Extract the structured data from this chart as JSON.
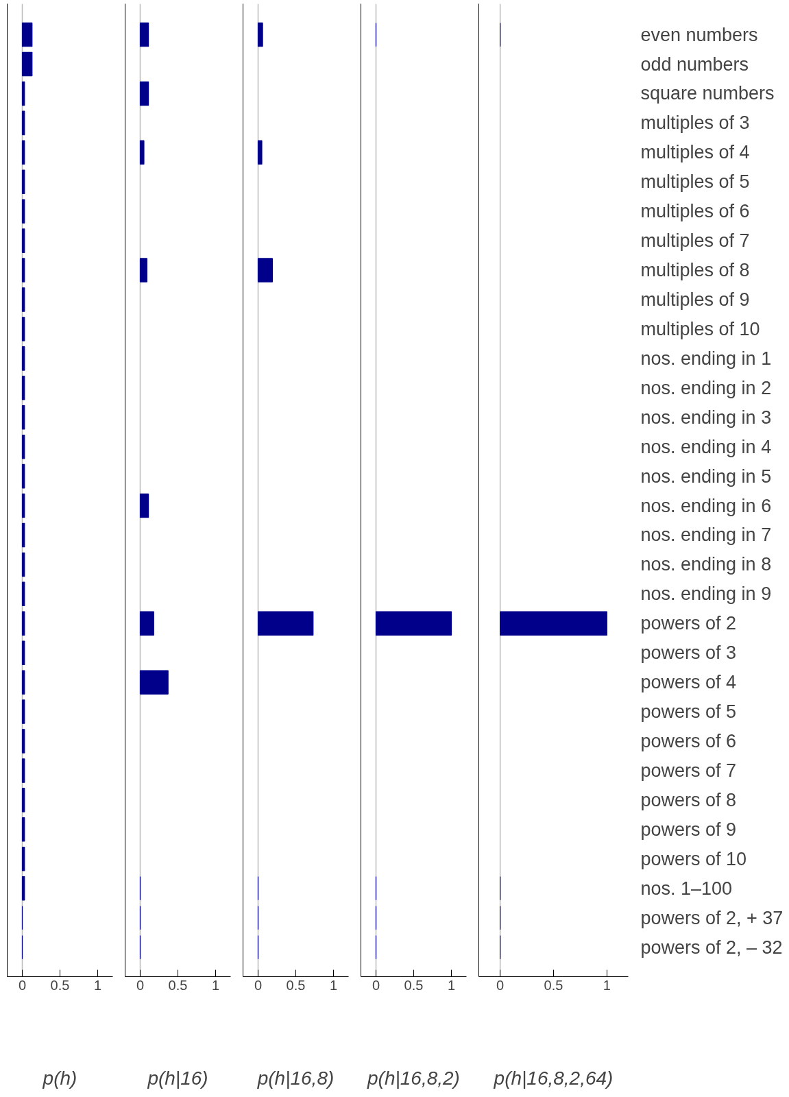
{
  "chart_data": [
    {
      "type": "bar",
      "orientation": "horizontal",
      "xlabel": "p(h)",
      "tick_labels": "x",
      "color": "#00008b",
      "xlim": [
        -0.2,
        1.2
      ],
      "xticks": [
        0,
        0.5,
        1
      ],
      "ref_lines": [
        {
          "axis": "x",
          "value": 0,
          "color": "#bbbbbb"
        }
      ],
      "values": [
        0.13,
        0.13,
        0.03,
        0.03,
        0.03,
        0.03,
        0.03,
        0.03,
        0.03,
        0.03,
        0.03,
        0.03,
        0.03,
        0.03,
        0.03,
        0.03,
        0.03,
        0.03,
        0.03,
        0.03,
        0.03,
        0.03,
        0.03,
        0.03,
        0.03,
        0.03,
        0.03,
        0.03,
        0.03,
        0.03,
        0,
        0
      ]
    },
    {
      "type": "bar",
      "orientation": "horizontal",
      "xlabel": "p(h|16)",
      "tick_labels": "x",
      "color": "#00008b",
      "xlim": [
        -0.2,
        1.2
      ],
      "xticks": [
        0,
        0.5,
        1
      ],
      "ref_lines": [
        {
          "axis": "x",
          "value": 0,
          "color": "#bbbbbb"
        }
      ],
      "values": [
        0.11,
        null,
        0.11,
        null,
        0.05,
        null,
        null,
        null,
        0.09,
        null,
        null,
        null,
        null,
        null,
        null,
        null,
        0.11,
        null,
        null,
        null,
        0.18,
        null,
        0.37,
        null,
        null,
        null,
        null,
        null,
        null,
        0,
        0,
        0
      ]
    },
    {
      "type": "bar",
      "orientation": "horizontal",
      "xlabel": "p(h|16,8)",
      "tick_labels": "x",
      "color": "#00008b",
      "xlim": [
        -0.2,
        1.2
      ],
      "xticks": [
        0,
        0.5,
        1
      ],
      "ref_lines": [
        {
          "axis": "x",
          "value": 0,
          "color": "#bbbbbb"
        }
      ],
      "values": [
        0.06,
        null,
        null,
        null,
        0.05,
        null,
        null,
        null,
        0.19,
        null,
        null,
        null,
        null,
        null,
        null,
        null,
        null,
        null,
        null,
        null,
        0.73,
        null,
        null,
        null,
        null,
        null,
        null,
        null,
        null,
        0,
        0,
        0
      ]
    },
    {
      "type": "bar",
      "orientation": "horizontal",
      "xlabel": "p(h|16,8,2)",
      "tick_labels": "x",
      "color": "#00008b",
      "xlim": [
        -0.2,
        1.2
      ],
      "xticks": [
        0,
        0.5,
        1
      ],
      "ref_lines": [
        {
          "axis": "x",
          "value": 0,
          "color": "#bbbbbb"
        }
      ],
      "values": [
        0,
        null,
        null,
        null,
        null,
        null,
        null,
        null,
        null,
        null,
        null,
        null,
        null,
        null,
        null,
        null,
        null,
        null,
        null,
        null,
        1.0,
        null,
        null,
        null,
        null,
        null,
        null,
        null,
        null,
        0,
        0,
        0
      ]
    },
    {
      "type": "bar",
      "orientation": "horizontal",
      "xlabel": "p(h|16,8,2,64)",
      "color": "#00008b",
      "xlim": [
        -0.2,
        1.2
      ],
      "xticks": [
        0,
        0.5,
        1
      ],
      "ref_lines": [
        {
          "axis": "x",
          "value": 0,
          "color": "#bbbbbb"
        }
      ],
      "categories": [
        "even numbers",
        "odd numbers",
        "square numbers",
        "multiples of 3",
        "multiples of 4",
        "multiples of 5",
        "multiples of 6",
        "multiples of 7",
        "multiples of 8",
        "multiples of 9",
        "multiples of 10",
        "nos. ending in 1",
        "nos. ending in 2",
        "nos. ending in 3",
        "nos. ending in 4",
        "nos. ending in 5",
        "nos. ending in 6",
        "nos. ending in 7",
        "nos. ending in 8",
        "nos. ending in 9",
        "powers of 2",
        "powers of 3",
        "powers of 4",
        "powers of 5",
        "powers of 6",
        "powers of 7",
        "powers of 8",
        "powers of 9",
        "powers of 10",
        "nos. 1–100",
        "powers of 2, + 37",
        "powers of 2, – 32"
      ],
      "values": [
        0,
        null,
        null,
        null,
        null,
        null,
        null,
        null,
        null,
        null,
        null,
        null,
        null,
        null,
        null,
        null,
        null,
        null,
        null,
        null,
        1.0,
        null,
        null,
        null,
        null,
        null,
        null,
        null,
        null,
        0,
        0,
        0
      ]
    }
  ]
}
